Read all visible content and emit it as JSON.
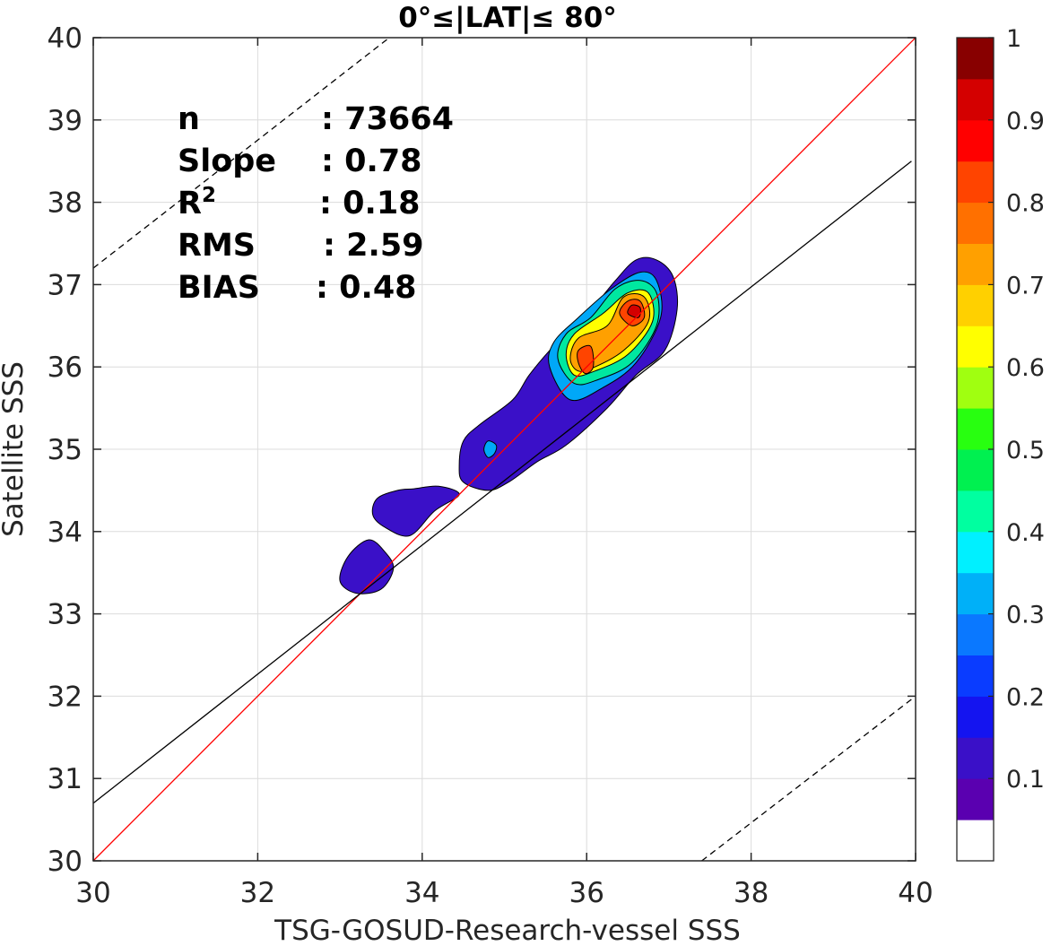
{
  "chart_data": {
    "type": "contour",
    "title": "0°≤|LAT|≤ 80°",
    "xlabel": "TSG-GOSUD-Research-vessel SSS",
    "ylabel": "Satellite SSS",
    "xlim": [
      30,
      40
    ],
    "ylim": [
      30,
      40
    ],
    "xticks": [
      "30",
      "32",
      "34",
      "36",
      "38",
      "40"
    ],
    "yticks": [
      "30",
      "31",
      "32",
      "33",
      "34",
      "35",
      "36",
      "37",
      "38",
      "39",
      "40"
    ],
    "grid": true,
    "stats": [
      {
        "label": "n",
        "value": ": 73664"
      },
      {
        "label": "Slope",
        "value": ": 0.78"
      },
      {
        "label": "R",
        "sup": "2",
        "value": ": 0.18"
      },
      {
        "label": "RMS",
        "value": ": 2.59"
      },
      {
        "label": "BIAS",
        "value": ": 0.48"
      }
    ],
    "lines": [
      {
        "name": "one-to-one",
        "color": "#ff0000",
        "style": "solid",
        "points": [
          [
            30,
            30
          ],
          [
            40,
            40
          ]
        ]
      },
      {
        "name": "regression",
        "color": "#000000",
        "style": "solid",
        "points": [
          [
            30,
            30.7
          ],
          [
            39.95,
            38.5
          ]
        ]
      },
      {
        "name": "upper-bound",
        "color": "#000000",
        "style": "dashed",
        "points": [
          [
            30,
            37.2
          ],
          [
            33.6,
            40
          ]
        ]
      },
      {
        "name": "lower-bound",
        "color": "#000000",
        "style": "dashed",
        "points": [
          [
            37.4,
            30
          ],
          [
            40,
            32
          ]
        ]
      }
    ],
    "contour_levels": [
      {
        "level": 0.05,
        "color": "#3a10c8",
        "regions": [
          [
            [
              34.5,
              34.6
            ],
            [
              34.45,
              34.8
            ],
            [
              34.5,
              35.1
            ],
            [
              34.7,
              35.3
            ],
            [
              35.1,
              35.6
            ],
            [
              35.3,
              35.9
            ],
            [
              35.55,
              36.2
            ],
            [
              35.8,
              36.45
            ],
            [
              36.1,
              36.75
            ],
            [
              36.35,
              37.05
            ],
            [
              36.6,
              37.3
            ],
            [
              36.85,
              37.3
            ],
            [
              37.05,
              37.1
            ],
            [
              37.1,
              36.7
            ],
            [
              36.95,
              36.2
            ],
            [
              36.6,
              35.9
            ],
            [
              36.25,
              35.5
            ],
            [
              35.75,
              35.05
            ],
            [
              35.4,
              34.85
            ],
            [
              35.05,
              34.6
            ],
            [
              34.8,
              34.5
            ]
          ],
          [
            [
              33.7,
              34.5
            ],
            [
              33.45,
              34.4
            ],
            [
              33.4,
              34.2
            ],
            [
              33.55,
              34.05
            ],
            [
              33.85,
              33.95
            ],
            [
              34.15,
              34.25
            ],
            [
              34.45,
              34.45
            ],
            [
              34.2,
              34.55
            ],
            [
              33.9,
              34.52
            ]
          ],
          [
            [
              33.0,
              33.4
            ],
            [
              33.1,
              33.7
            ],
            [
              33.35,
              33.9
            ],
            [
              33.55,
              33.75
            ],
            [
              33.65,
              33.55
            ],
            [
              33.5,
              33.3
            ],
            [
              33.2,
              33.25
            ]
          ]
        ]
      },
      {
        "level": 0.3,
        "color": "#00a8f8",
        "regions": [
          [
            [
              35.55,
              36.0
            ],
            [
              35.6,
              36.3
            ],
            [
              35.9,
              36.6
            ],
            [
              36.3,
              36.95
            ],
            [
              36.65,
              37.15
            ],
            [
              36.85,
              37.05
            ],
            [
              36.9,
              36.6
            ],
            [
              36.6,
              36.05
            ],
            [
              36.2,
              35.75
            ],
            [
              35.8,
              35.6
            ]
          ],
          [
            [
              34.75,
              35.0
            ],
            [
              34.8,
              35.1
            ],
            [
              34.9,
              35.05
            ],
            [
              34.88,
              34.95
            ],
            [
              34.8,
              34.9
            ]
          ]
        ]
      },
      {
        "level": 0.45,
        "color": "#00e8a0",
        "regions": [
          [
            [
              35.65,
              36.1
            ],
            [
              35.75,
              36.4
            ],
            [
              36.05,
              36.6
            ],
            [
              36.35,
              36.95
            ],
            [
              36.65,
              37.05
            ],
            [
              36.85,
              36.9
            ],
            [
              36.85,
              36.5
            ],
            [
              36.55,
              36.05
            ],
            [
              36.15,
              35.85
            ],
            [
              35.85,
              35.8
            ]
          ]
        ]
      },
      {
        "level": 0.6,
        "color": "#ffff00",
        "regions": [
          [
            [
              35.75,
              36.15
            ],
            [
              35.85,
              36.4
            ],
            [
              36.2,
              36.65
            ],
            [
              36.5,
              36.9
            ],
            [
              36.75,
              36.9
            ],
            [
              36.8,
              36.55
            ],
            [
              36.5,
              36.15
            ],
            [
              36.1,
              35.95
            ],
            [
              35.85,
              35.9
            ]
          ]
        ]
      },
      {
        "level": 0.75,
        "color": "#ffa000",
        "regions": [
          [
            [
              35.8,
              36.1
            ],
            [
              35.9,
              36.35
            ],
            [
              36.25,
              36.5
            ],
            [
              36.45,
              36.85
            ],
            [
              36.7,
              36.85
            ],
            [
              36.75,
              36.55
            ],
            [
              36.45,
              36.2
            ],
            [
              36.1,
              36.0
            ],
            [
              35.9,
              35.95
            ]
          ]
        ]
      },
      {
        "level": 0.85,
        "color": "#ff4400",
        "regions": [
          [
            [
              35.9,
              36.05
            ],
            [
              35.9,
              36.2
            ],
            [
              36.05,
              36.25
            ],
            [
              36.08,
              36.0
            ],
            [
              35.98,
              35.92
            ]
          ],
          [
            [
              36.4,
              36.65
            ],
            [
              36.5,
              36.8
            ],
            [
              36.65,
              36.8
            ],
            [
              36.7,
              36.6
            ],
            [
              36.55,
              36.5
            ]
          ]
        ]
      },
      {
        "level": 0.95,
        "color": "#d40000",
        "regions": [
          [
            [
              36.5,
              36.65
            ],
            [
              36.55,
              36.75
            ],
            [
              36.65,
              36.72
            ],
            [
              36.63,
              36.6
            ]
          ]
        ]
      }
    ],
    "colorbar": {
      "colors": [
        "#ffffff",
        "#5a00b0",
        "#3a10c8",
        "#1414f0",
        "#0a3cff",
        "#0a78ff",
        "#00b0f8",
        "#00f0ff",
        "#00ffa0",
        "#00f050",
        "#28ff10",
        "#a0ff10",
        "#ffff00",
        "#ffd000",
        "#ffa000",
        "#ff7000",
        "#ff4400",
        "#ff0000",
        "#d40000",
        "#880000"
      ],
      "ticks": [
        "0.1",
        "0.2",
        "0.3",
        "0.4",
        "0.5",
        "0.6",
        "0.7",
        "0.8",
        "0.9",
        "1"
      ],
      "tick_values": [
        0.1,
        0.2,
        0.3,
        0.4,
        0.5,
        0.6,
        0.7,
        0.8,
        0.9,
        1.0
      ],
      "range": [
        0,
        1
      ]
    }
  }
}
